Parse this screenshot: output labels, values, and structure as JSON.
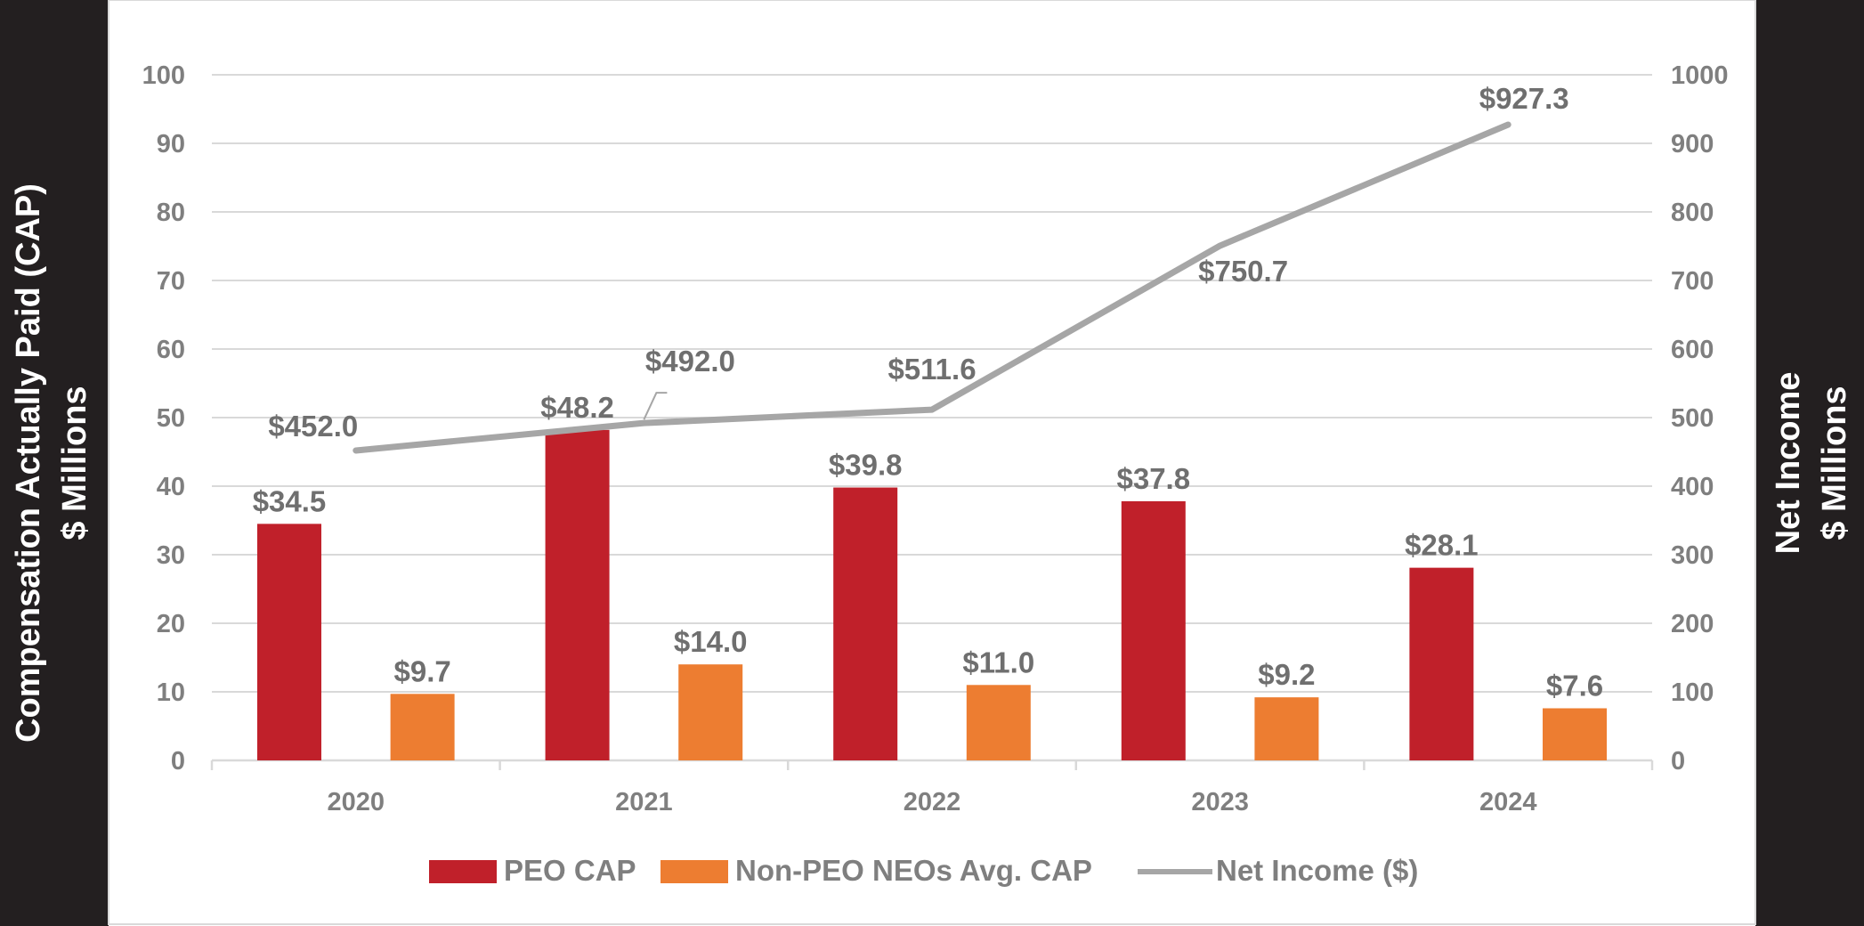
{
  "chart_data": {
    "type": "bar",
    "categories": [
      "2020",
      "2021",
      "2022",
      "2023",
      "2024"
    ],
    "series": [
      {
        "name": "PEO CAP",
        "kind": "bar",
        "axis": "left",
        "color": "#c0202a",
        "values": [
          34.5,
          48.2,
          39.8,
          37.8,
          28.1
        ],
        "labels": [
          "$34.5",
          "$48.2",
          "$39.8",
          "$37.8",
          "$28.1"
        ]
      },
      {
        "name": "Non-PEO NEOs Avg. CAP",
        "kind": "bar",
        "axis": "left",
        "color": "#ed7d31",
        "values": [
          9.7,
          14.0,
          11.0,
          9.2,
          7.6
        ],
        "labels": [
          "$9.7",
          "$14.0",
          "$11.0",
          "$9.2",
          "$7.6"
        ]
      },
      {
        "name": "Net Income ($)",
        "kind": "line",
        "axis": "right",
        "color": "#a6a6a6",
        "values": [
          452.0,
          492.0,
          511.6,
          750.7,
          927.3
        ],
        "labels": [
          "$452.0",
          "$492.0",
          "$511.6",
          "$750.7",
          "$927.3"
        ]
      }
    ],
    "ylabel": "Compensation Actually Paid (CAP)",
    "ylabel2": "$ Millions",
    "y2label": "Net Income",
    "y2label2": "$ Millions",
    "ylim": [
      0,
      100
    ],
    "y2lim": [
      0,
      1000
    ],
    "yticks": [
      "0",
      "10",
      "20",
      "30",
      "40",
      "50",
      "60",
      "70",
      "80",
      "90",
      "100"
    ],
    "y2ticks": [
      "0",
      "100",
      "200",
      "300",
      "400",
      "500",
      "600",
      "700",
      "800",
      "900",
      "1000"
    ],
    "grid": true,
    "legend": "bottom",
    "side_panel_color": "#231f20"
  }
}
